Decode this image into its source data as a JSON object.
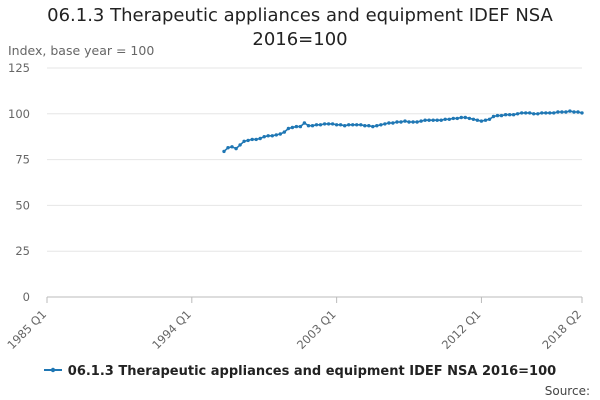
{
  "chart_data": {
    "type": "line",
    "title": "06.1.3 Therapeutic appliances and equipment IDEF NSA 2016=100",
    "ylabel": "Index, base year = 100",
    "xlabel": "",
    "ylim": [
      0,
      125
    ],
    "yticks": [
      "0",
      "25",
      "50",
      "75",
      "100",
      "125"
    ],
    "xticks": [
      {
        "label": "1985 Q1",
        "t": 1985.0
      },
      {
        "label": "1994 Q1",
        "t": 1994.0
      },
      {
        "label": "2003 Q1",
        "t": 2003.0
      },
      {
        "label": "2012 Q1",
        "t": 2012.0
      },
      {
        "label": "2018 Q2",
        "t": 2018.25
      }
    ],
    "x_range": [
      1985.0,
      2018.25
    ],
    "grid": true,
    "legend_position": "bottom",
    "series": [
      {
        "name": "06.1.3 Therapeutic appliances and equipment IDEF NSA 2016=100",
        "color": "#1f77b4",
        "start": "1996 Q1",
        "x": [
          1996.0,
          1996.25,
          1996.5,
          1996.75,
          1997.0,
          1997.25,
          1997.5,
          1997.75,
          1998.0,
          1998.25,
          1998.5,
          1998.75,
          1999.0,
          1999.25,
          1999.5,
          1999.75,
          2000.0,
          2000.25,
          2000.5,
          2000.75,
          2001.0,
          2001.25,
          2001.5,
          2001.75,
          2002.0,
          2002.25,
          2002.5,
          2002.75,
          2003.0,
          2003.25,
          2003.5,
          2003.75,
          2004.0,
          2004.25,
          2004.5,
          2004.75,
          2005.0,
          2005.25,
          2005.5,
          2005.75,
          2006.0,
          2006.25,
          2006.5,
          2006.75,
          2007.0,
          2007.25,
          2007.5,
          2007.75,
          2008.0,
          2008.25,
          2008.5,
          2008.75,
          2009.0,
          2009.25,
          2009.5,
          2009.75,
          2010.0,
          2010.25,
          2010.5,
          2010.75,
          2011.0,
          2011.25,
          2011.5,
          2011.75,
          2012.0,
          2012.25,
          2012.5,
          2012.75,
          2013.0,
          2013.25,
          2013.5,
          2013.75,
          2014.0,
          2014.25,
          2014.5,
          2014.75,
          2015.0,
          2015.25,
          2015.5,
          2015.75,
          2016.0,
          2016.25,
          2016.5,
          2016.75,
          2017.0,
          2017.25,
          2017.5,
          2017.75,
          2018.0,
          2018.25
        ],
        "values": [
          79.5,
          81.5,
          82.0,
          81.0,
          83.0,
          85.0,
          85.5,
          86.0,
          86.0,
          86.5,
          87.5,
          88.0,
          88.0,
          88.5,
          89.0,
          90.0,
          92.0,
          92.5,
          93.0,
          93.0,
          95.0,
          93.5,
          93.5,
          94.0,
          94.0,
          94.5,
          94.5,
          94.5,
          94.0,
          94.0,
          93.5,
          94.0,
          94.0,
          94.0,
          94.0,
          93.5,
          93.5,
          93.0,
          93.5,
          94.0,
          94.5,
          95.0,
          95.0,
          95.5,
          95.5,
          96.0,
          95.5,
          95.5,
          95.5,
          96.0,
          96.5,
          96.5,
          96.5,
          96.5,
          96.5,
          97.0,
          97.0,
          97.5,
          97.5,
          98.0,
          98.0,
          97.5,
          97.0,
          96.5,
          96.0,
          96.5,
          97.0,
          98.5,
          99.0,
          99.0,
          99.5,
          99.5,
          99.5,
          100.0,
          100.5,
          100.5,
          100.5,
          100.0,
          100.0,
          100.5,
          100.5,
          100.5,
          100.5,
          101.0,
          101.0,
          101.0,
          101.5,
          101.0,
          101.0,
          100.5
        ]
      }
    ],
    "source": "Source:"
  }
}
